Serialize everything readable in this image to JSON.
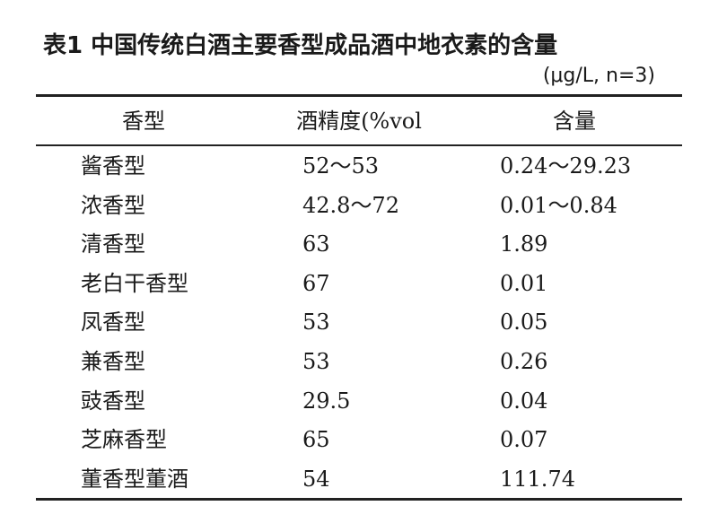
{
  "header": {
    "title": "表1 中国传统白酒主要香型成品酒中地衣素的含量",
    "unit": "(μg/L, n=3)"
  },
  "table": {
    "columns": [
      "香型",
      "酒精度(%vol",
      "含量"
    ],
    "rows": [
      [
        "酱香型",
        "52～53",
        "0.24～29.23"
      ],
      [
        "浓香型",
        "42.8～72",
        "0.01～0.84"
      ],
      [
        "清香型",
        "63",
        "1.89"
      ],
      [
        "老白干香型",
        "67",
        "0.01"
      ],
      [
        "凤香型",
        "53",
        "0.05"
      ],
      [
        "兼香型",
        "53",
        "0.26"
      ],
      [
        "豉香型",
        "29.5",
        "0.04"
      ],
      [
        "芝麻香型",
        "65",
        "0.07"
      ],
      [
        "董香型董酒",
        "54",
        "111.74"
      ]
    ]
  }
}
